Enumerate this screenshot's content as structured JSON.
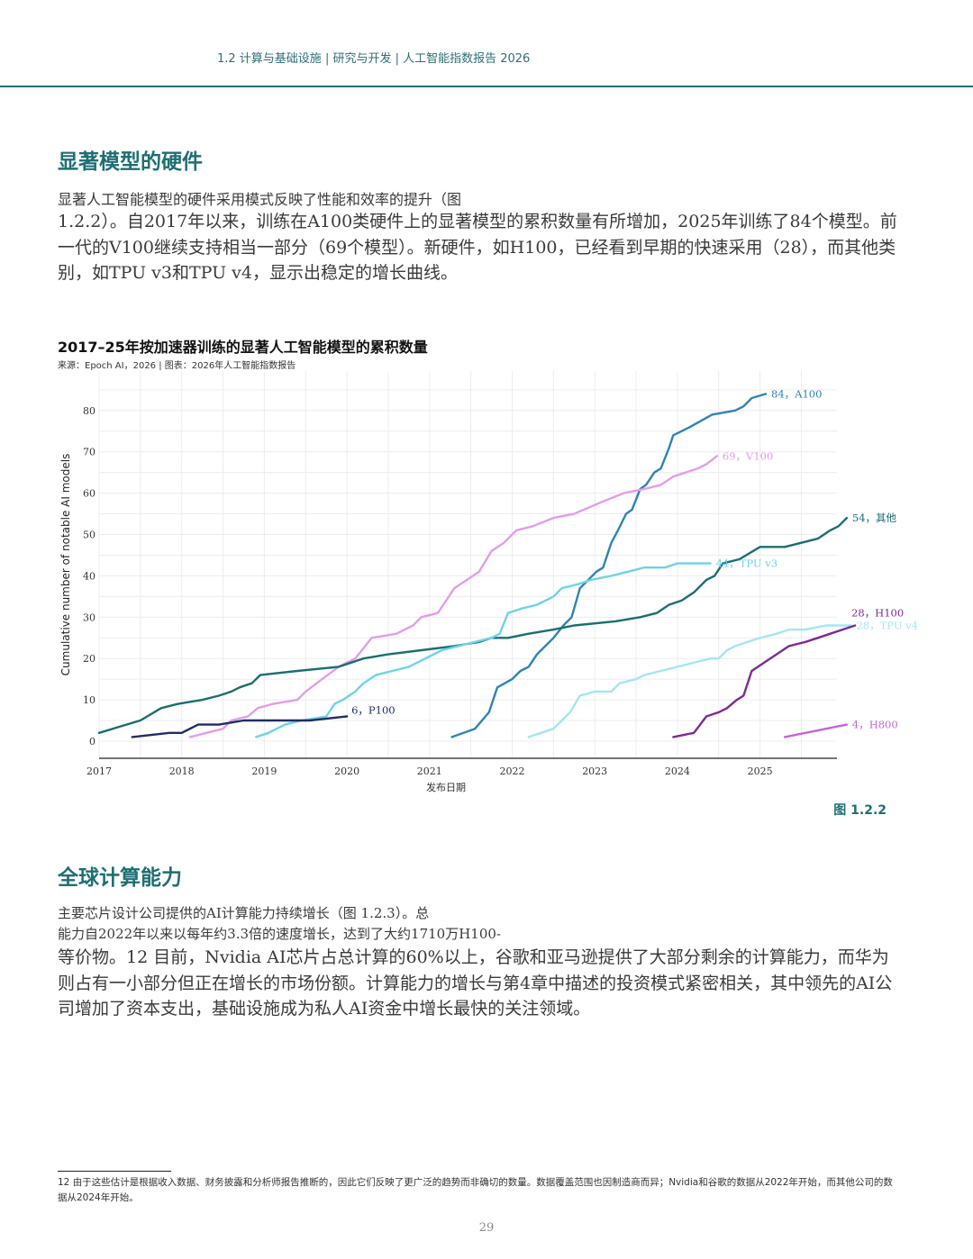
{
  "header": {
    "breadcrumb": "1.2 计算与基础设施 | 研究与开发 | 人工智能指数报告 2026"
  },
  "section1": {
    "title": "显著模型的硬件",
    "para_line1": "显著人工智能模型的硬件采用模式反映了性能和效率的提升（图",
    "para_rest": "1.2.2）。自2017年以来，训练在A100类硬件上的显著模型的累积数量有所增加，2025年训练了84个模型。前一代的V100继续支持相当一部分（69个模型）。新硬件，如H100，已经看到早期的快速采用（28），而其他类别，如TPU v3和TPU v4，显示出稳定的增长曲线。"
  },
  "chart": {
    "title": "2017–25年按加速器训练的显著人工智能模型的累积数量",
    "source": "来源：Epoch AI，2026 | 图表：2026年人工智能指数报告",
    "figure_label": "图 1.2.2"
  },
  "chart_data": {
    "type": "line",
    "title": "2017–25年按加速器训练的显著人工智能模型的累积数量",
    "xlabel": "发布日期",
    "ylabel": "Cumulative number of notable AI models",
    "xlim": [
      2017.0,
      2025.95
    ],
    "ylim": [
      -4,
      89
    ],
    "xticks": [
      2017,
      2018,
      2019,
      2020,
      2021,
      2022,
      2023,
      2024,
      2025
    ],
    "yticks": [
      0,
      10,
      20,
      30,
      40,
      50,
      60,
      70,
      80
    ],
    "grid": true,
    "legend": "none (direct end labels)",
    "series": [
      {
        "name": "A100",
        "label": "84，A100",
        "color": "#2f83b4",
        "points": [
          [
            2021.27,
            1
          ],
          [
            2021.55,
            3
          ],
          [
            2021.72,
            7
          ],
          [
            2021.82,
            13
          ],
          [
            2022.0,
            15
          ],
          [
            2022.1,
            17
          ],
          [
            2022.2,
            18
          ],
          [
            2022.3,
            21
          ],
          [
            2022.5,
            25
          ],
          [
            2022.62,
            28
          ],
          [
            2022.72,
            30
          ],
          [
            2022.82,
            37
          ],
          [
            2023.02,
            41
          ],
          [
            2023.1,
            42
          ],
          [
            2023.2,
            48
          ],
          [
            2023.28,
            51
          ],
          [
            2023.38,
            55
          ],
          [
            2023.45,
            56
          ],
          [
            2023.55,
            61
          ],
          [
            2023.62,
            62
          ],
          [
            2023.72,
            65
          ],
          [
            2023.8,
            66
          ],
          [
            2023.9,
            71
          ],
          [
            2023.95,
            74
          ],
          [
            2024.05,
            75
          ],
          [
            2024.15,
            76
          ],
          [
            2024.42,
            79
          ],
          [
            2024.7,
            80
          ],
          [
            2024.8,
            81
          ],
          [
            2024.9,
            83
          ],
          [
            2025.07,
            84
          ]
        ]
      },
      {
        "name": "V100",
        "label": "69，V100",
        "color": "#e49ceb",
        "points": [
          [
            2018.1,
            1
          ],
          [
            2018.3,
            2
          ],
          [
            2018.5,
            3
          ],
          [
            2018.6,
            5
          ],
          [
            2018.8,
            6
          ],
          [
            2018.92,
            8
          ],
          [
            2019.1,
            9
          ],
          [
            2019.4,
            10
          ],
          [
            2019.5,
            12
          ],
          [
            2019.7,
            15
          ],
          [
            2019.9,
            18
          ],
          [
            2020.1,
            20
          ],
          [
            2020.3,
            25
          ],
          [
            2020.6,
            26
          ],
          [
            2020.8,
            28
          ],
          [
            2020.9,
            30
          ],
          [
            2021.1,
            31
          ],
          [
            2021.3,
            37
          ],
          [
            2021.45,
            39
          ],
          [
            2021.6,
            41
          ],
          [
            2021.75,
            46
          ],
          [
            2021.9,
            48
          ],
          [
            2022.05,
            51
          ],
          [
            2022.25,
            52
          ],
          [
            2022.5,
            54
          ],
          [
            2022.75,
            55
          ],
          [
            2023.1,
            58
          ],
          [
            2023.35,
            60
          ],
          [
            2023.6,
            61
          ],
          [
            2023.8,
            62
          ],
          [
            2023.95,
            64
          ],
          [
            2024.1,
            65
          ],
          [
            2024.25,
            66
          ],
          [
            2024.35,
            67
          ],
          [
            2024.48,
            69
          ]
        ]
      },
      {
        "name": "其他",
        "label": "54，其他",
        "color": "#1b6e72",
        "points": [
          [
            2017.0,
            2
          ],
          [
            2017.5,
            5
          ],
          [
            2017.75,
            8
          ],
          [
            2017.95,
            9
          ],
          [
            2018.25,
            10
          ],
          [
            2018.45,
            11
          ],
          [
            2018.6,
            12
          ],
          [
            2018.7,
            13
          ],
          [
            2018.85,
            14
          ],
          [
            2018.95,
            16
          ],
          [
            2019.4,
            17
          ],
          [
            2019.9,
            18
          ],
          [
            2020.2,
            20
          ],
          [
            2020.5,
            21
          ],
          [
            2020.9,
            22
          ],
          [
            2021.3,
            23
          ],
          [
            2021.6,
            24
          ],
          [
            2021.75,
            25
          ],
          [
            2021.95,
            25
          ],
          [
            2022.2,
            26
          ],
          [
            2022.5,
            27
          ],
          [
            2022.75,
            28
          ],
          [
            2023.25,
            29
          ],
          [
            2023.55,
            30
          ],
          [
            2023.75,
            31
          ],
          [
            2023.9,
            33
          ],
          [
            2024.05,
            34
          ],
          [
            2024.2,
            36
          ],
          [
            2024.35,
            39
          ],
          [
            2024.45,
            40
          ],
          [
            2024.55,
            43
          ],
          [
            2024.75,
            44
          ],
          [
            2025.0,
            47
          ],
          [
            2025.3,
            47
          ],
          [
            2025.5,
            48
          ],
          [
            2025.7,
            49
          ],
          [
            2025.85,
            51
          ],
          [
            2025.95,
            52
          ],
          [
            2026.05,
            54
          ]
        ]
      },
      {
        "name": "TPU v3",
        "label": "44，TPU v3",
        "color": "#6ed3e8",
        "points": [
          [
            2018.9,
            1
          ],
          [
            2019.05,
            2
          ],
          [
            2019.25,
            4
          ],
          [
            2019.45,
            5
          ],
          [
            2019.75,
            6
          ],
          [
            2019.85,
            9
          ],
          [
            2019.95,
            10
          ],
          [
            2020.1,
            12
          ],
          [
            2020.2,
            14
          ],
          [
            2020.35,
            16
          ],
          [
            2020.55,
            17
          ],
          [
            2020.75,
            18
          ],
          [
            2020.95,
            20
          ],
          [
            2021.15,
            22
          ],
          [
            2021.35,
            23
          ],
          [
            2021.55,
            24
          ],
          [
            2021.75,
            25
          ],
          [
            2021.85,
            26
          ],
          [
            2021.95,
            31
          ],
          [
            2022.1,
            32
          ],
          [
            2022.3,
            33
          ],
          [
            2022.5,
            35
          ],
          [
            2022.6,
            37
          ],
          [
            2022.8,
            38
          ],
          [
            2022.95,
            39
          ],
          [
            2023.2,
            40
          ],
          [
            2023.4,
            41
          ],
          [
            2023.6,
            42
          ],
          [
            2023.85,
            42
          ],
          [
            2024.0,
            43
          ],
          [
            2024.2,
            43
          ],
          [
            2024.4,
            43
          ]
        ]
      },
      {
        "name": "TPU v4",
        "label": "28，TPU v4",
        "color": "#a3e6f5",
        "points": [
          [
            2022.2,
            1
          ],
          [
            2022.35,
            2
          ],
          [
            2022.5,
            3
          ],
          [
            2022.6,
            5
          ],
          [
            2022.7,
            7
          ],
          [
            2022.82,
            11
          ],
          [
            2023.0,
            12
          ],
          [
            2023.2,
            12
          ],
          [
            2023.3,
            14
          ],
          [
            2023.5,
            15
          ],
          [
            2023.6,
            16
          ],
          [
            2023.8,
            17
          ],
          [
            2024.0,
            18
          ],
          [
            2024.2,
            19
          ],
          [
            2024.4,
            20
          ],
          [
            2024.5,
            20
          ],
          [
            2024.6,
            22
          ],
          [
            2024.7,
            23
          ],
          [
            2024.85,
            24
          ],
          [
            2025.0,
            25
          ],
          [
            2025.2,
            26
          ],
          [
            2025.35,
            27
          ],
          [
            2025.55,
            27
          ],
          [
            2025.8,
            28
          ],
          [
            2026.0,
            28
          ],
          [
            2026.1,
            28
          ]
        ]
      },
      {
        "name": "H100",
        "label": "28，H100",
        "color": "#7d2a93",
        "points": [
          [
            2023.95,
            1
          ],
          [
            2024.2,
            2
          ],
          [
            2024.35,
            6
          ],
          [
            2024.5,
            7
          ],
          [
            2024.6,
            8
          ],
          [
            2024.72,
            10
          ],
          [
            2024.8,
            11
          ],
          [
            2024.9,
            17
          ],
          [
            2025.05,
            19
          ],
          [
            2025.2,
            21
          ],
          [
            2025.35,
            23
          ],
          [
            2025.55,
            24
          ],
          [
            2025.7,
            25
          ],
          [
            2025.85,
            26
          ],
          [
            2026.0,
            27
          ],
          [
            2026.15,
            28
          ]
        ]
      },
      {
        "name": "P100",
        "label": "6，P100",
        "color": "#1e2e66",
        "points": [
          [
            2017.4,
            1
          ],
          [
            2017.85,
            2
          ],
          [
            2018.0,
            2
          ],
          [
            2018.2,
            4
          ],
          [
            2018.45,
            4
          ],
          [
            2018.75,
            5
          ],
          [
            2019.2,
            5
          ],
          [
            2019.55,
            5
          ],
          [
            2020.0,
            6
          ]
        ]
      },
      {
        "name": "H800",
        "label": "4，H800",
        "color": "#c465d6",
        "points": [
          [
            2025.3,
            1
          ],
          [
            2025.55,
            2
          ],
          [
            2025.8,
            3
          ],
          [
            2026.05,
            4
          ]
        ]
      }
    ]
  },
  "section2": {
    "title": "全球计算能力",
    "para_line1": "主要芯片设计公司提供的AI计算能力持续增长（图 1.2.3）。总",
    "para_line2": "能力自2022年以来以每年约3.3倍的速度增长，达到了大约1710万H100-",
    "para_rest": "等价物。12 目前，Nvidia AI芯片占总计算的60%以上，谷歌和亚马逊提供了大部分剩余的计算能力，而华为则占有一小部分但正在增长的市场份额。计算能力的增长与第4章中描述的投资模式紧密相关，其中领先的AI公司增加了资本支出，基础设施成为私人AI资金中增长最快的关注领域。"
  },
  "footnote": {
    "text": "12 由于这些估计是根据收入数据、财务披露和分析师报告推断的，因此它们反映了更广泛的趋势而非确切的数量。数据覆盖范围也因制造商而异；Nvidia和谷歌的数据从2022年开始，而其他公司的数据从2024年开始。"
  },
  "page": {
    "number": "29"
  }
}
